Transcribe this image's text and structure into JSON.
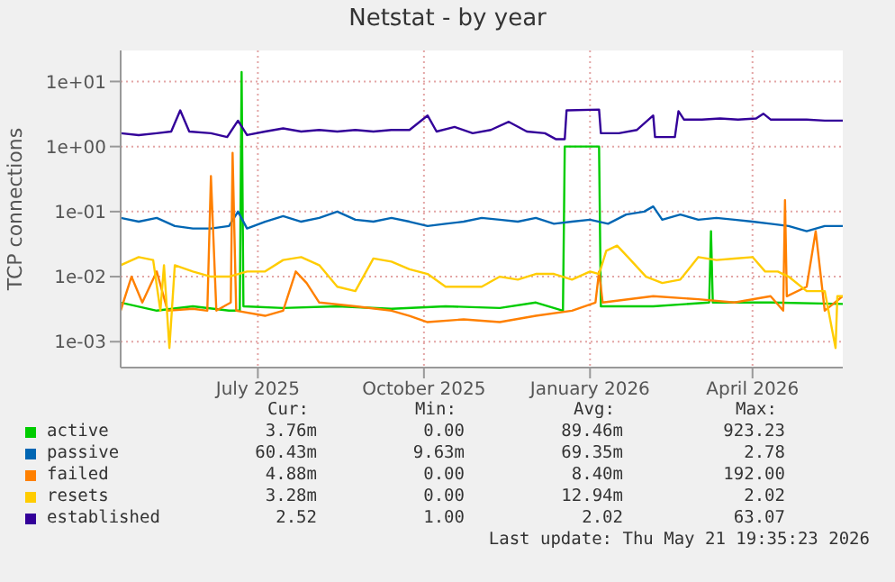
{
  "chart_data": {
    "type": "line",
    "title": "Netstat - by year",
    "ylabel": "TCP connections",
    "log": "y",
    "grid": true,
    "legend": "bottom",
    "marker": "none",
    "line_style": "solid",
    "xlim": [
      "2025-04-16",
      "2026-05-21"
    ],
    "xticks": [
      {
        "value": "2025-07-01",
        "label": "July 2025"
      },
      {
        "value": "2025-10-01",
        "label": "October 2025"
      },
      {
        "value": "2026-01-01",
        "label": "January 2026"
      },
      {
        "value": "2026-04-01",
        "label": "April 2026"
      }
    ],
    "ylim": [
      0.0004,
      30
    ],
    "yticks": [
      {
        "value": 0.001,
        "label": "1e-03"
      },
      {
        "value": 0.01,
        "label": "1e-02"
      },
      {
        "value": 0.1,
        "label": "1e-01"
      },
      {
        "value": 1,
        "label": "1e+00"
      },
      {
        "value": 10,
        "label": "1e+01"
      }
    ],
    "series": [
      {
        "name": "active",
        "color": "#00cc00",
        "x": [
          "2025-04-16",
          "2025-05-06",
          "2025-05-26",
          "2025-06-15",
          "2025-06-21",
          "2025-06-22",
          "2025-06-23",
          "2025-07-15",
          "2025-08-14",
          "2025-09-13",
          "2025-10-13",
          "2025-11-12",
          "2025-12-02",
          "2025-12-17",
          "2025-12-18",
          "2026-01-06",
          "2026-01-07",
          "2026-02-05",
          "2026-03-08",
          "2026-03-09",
          "2026-03-10",
          "2026-04-11",
          "2026-05-21"
        ],
        "values": [
          0.004,
          0.003,
          0.0035,
          0.003,
          0.003,
          14,
          0.0035,
          0.0033,
          0.0035,
          0.0032,
          0.0035,
          0.0033,
          0.004,
          0.003,
          1.0,
          1.0,
          0.0035,
          0.0035,
          0.004,
          0.05,
          0.004,
          0.004,
          0.0038
        ]
      },
      {
        "name": "passive",
        "color": "#0066b3",
        "x": [
          "2025-04-16",
          "2025-04-26",
          "2025-05-06",
          "2025-05-16",
          "2025-05-26",
          "2025-06-05",
          "2025-06-15",
          "2025-06-20",
          "2025-06-25",
          "2025-07-05",
          "2025-07-15",
          "2025-07-25",
          "2025-08-04",
          "2025-08-14",
          "2025-08-24",
          "2025-09-03",
          "2025-09-13",
          "2025-09-23",
          "2025-10-03",
          "2025-10-13",
          "2025-10-23",
          "2025-11-02",
          "2025-11-12",
          "2025-11-22",
          "2025-12-02",
          "2025-12-12",
          "2025-12-22",
          "2026-01-01",
          "2026-01-11",
          "2026-01-21",
          "2026-01-31",
          "2026-02-05",
          "2026-02-10",
          "2026-02-20",
          "2026-03-02",
          "2026-03-12",
          "2026-03-22",
          "2026-04-01",
          "2026-04-11",
          "2026-04-21",
          "2026-05-01",
          "2026-05-11",
          "2026-05-21"
        ],
        "values": [
          0.08,
          0.07,
          0.08,
          0.06,
          0.055,
          0.055,
          0.06,
          0.1,
          0.055,
          0.07,
          0.085,
          0.07,
          0.08,
          0.1,
          0.075,
          0.07,
          0.08,
          0.07,
          0.06,
          0.065,
          0.07,
          0.08,
          0.075,
          0.07,
          0.08,
          0.065,
          0.07,
          0.075,
          0.065,
          0.09,
          0.1,
          0.12,
          0.075,
          0.09,
          0.075,
          0.08,
          0.075,
          0.07,
          0.065,
          0.06,
          0.05,
          0.06,
          0.06
        ]
      },
      {
        "name": "failed",
        "color": "#ff8000",
        "x": [
          "2025-04-16",
          "2025-04-22",
          "2025-04-28",
          "2025-05-06",
          "2025-05-12",
          "2025-05-26",
          "2025-06-03",
          "2025-06-05",
          "2025-06-08",
          "2025-06-16",
          "2025-06-17",
          "2025-06-19",
          "2025-07-05",
          "2025-07-15",
          "2025-07-22",
          "2025-07-28",
          "2025-08-04",
          "2025-08-24",
          "2025-09-13",
          "2025-09-23",
          "2025-10-03",
          "2025-10-23",
          "2025-11-12",
          "2025-12-02",
          "2025-12-22",
          "2026-01-04",
          "2026-01-06",
          "2026-01-08",
          "2026-02-05",
          "2026-03-02",
          "2026-03-22",
          "2026-04-11",
          "2026-04-18",
          "2026-04-19",
          "2026-04-20",
          "2026-05-01",
          "2026-05-06",
          "2026-05-11",
          "2026-05-21"
        ],
        "values": [
          0.003,
          0.01,
          0.004,
          0.012,
          0.003,
          0.0032,
          0.003,
          0.35,
          0.003,
          0.004,
          0.8,
          0.003,
          0.0025,
          0.003,
          0.012,
          0.008,
          0.004,
          0.0035,
          0.003,
          0.0025,
          0.002,
          0.0022,
          0.002,
          0.0025,
          0.003,
          0.004,
          0.012,
          0.004,
          0.005,
          0.0045,
          0.004,
          0.005,
          0.003,
          0.15,
          0.005,
          0.007,
          0.05,
          0.003,
          0.005
        ]
      },
      {
        "name": "resets",
        "color": "#ffcc00",
        "x": [
          "2025-04-16",
          "2025-04-26",
          "2025-05-04",
          "2025-05-08",
          "2025-05-10",
          "2025-05-13",
          "2025-05-16",
          "2025-05-26",
          "2025-06-05",
          "2025-06-15",
          "2025-06-25",
          "2025-07-05",
          "2025-07-15",
          "2025-07-25",
          "2025-08-04",
          "2025-08-14",
          "2025-08-24",
          "2025-09-03",
          "2025-09-13",
          "2025-09-23",
          "2025-10-03",
          "2025-10-13",
          "2025-10-23",
          "2025-11-02",
          "2025-11-12",
          "2025-11-22",
          "2025-12-02",
          "2025-12-12",
          "2025-12-22",
          "2026-01-01",
          "2026-01-06",
          "2026-01-10",
          "2026-01-16",
          "2026-01-22",
          "2026-02-01",
          "2026-02-10",
          "2026-02-20",
          "2026-03-02",
          "2026-03-12",
          "2026-03-22",
          "2026-04-01",
          "2026-04-08",
          "2026-04-15",
          "2026-04-21",
          "2026-05-01",
          "2026-05-11",
          "2026-05-17",
          "2026-05-18",
          "2026-05-21"
        ],
        "values": [
          0.015,
          0.02,
          0.018,
          0.003,
          0.015,
          0.0008,
          0.015,
          0.012,
          0.01,
          0.01,
          0.012,
          0.012,
          0.018,
          0.02,
          0.015,
          0.007,
          0.006,
          0.019,
          0.017,
          0.013,
          0.011,
          0.007,
          0.007,
          0.007,
          0.01,
          0.009,
          0.011,
          0.011,
          0.009,
          0.012,
          0.011,
          0.025,
          0.03,
          0.02,
          0.01,
          0.008,
          0.009,
          0.02,
          0.018,
          0.019,
          0.02,
          0.012,
          0.012,
          0.01,
          0.006,
          0.006,
          0.0008,
          0.005,
          0.005
        ]
      },
      {
        "name": "established",
        "color": "#330099",
        "x": [
          "2025-04-16",
          "2025-04-26",
          "2025-05-06",
          "2025-05-14",
          "2025-05-19",
          "2025-05-24",
          "2025-06-05",
          "2025-06-14",
          "2025-06-20",
          "2025-06-25",
          "2025-07-05",
          "2025-07-15",
          "2025-07-25",
          "2025-08-04",
          "2025-08-14",
          "2025-08-24",
          "2025-09-03",
          "2025-09-13",
          "2025-09-23",
          "2025-10-03",
          "2025-10-08",
          "2025-10-18",
          "2025-10-28",
          "2025-11-07",
          "2025-11-17",
          "2025-11-27",
          "2025-12-07",
          "2025-12-13",
          "2025-12-18",
          "2025-12-19",
          "2026-01-06",
          "2026-01-07",
          "2026-01-17",
          "2026-01-27",
          "2026-02-05",
          "2026-02-06",
          "2026-02-17",
          "2026-02-19",
          "2026-02-22",
          "2026-03-04",
          "2026-03-14",
          "2026-03-24",
          "2026-04-03",
          "2026-04-07",
          "2026-04-11",
          "2026-04-21",
          "2026-05-01",
          "2026-05-11",
          "2026-05-21"
        ],
        "values": [
          1.6,
          1.5,
          1.6,
          1.7,
          3.6,
          1.7,
          1.6,
          1.4,
          2.5,
          1.5,
          1.7,
          1.9,
          1.7,
          1.8,
          1.7,
          1.8,
          1.7,
          1.8,
          1.8,
          3.0,
          1.7,
          2.0,
          1.6,
          1.8,
          2.4,
          1.7,
          1.6,
          1.3,
          1.3,
          3.6,
          3.7,
          1.6,
          1.6,
          1.8,
          3.0,
          1.4,
          1.4,
          3.5,
          2.6,
          2.6,
          2.7,
          2.6,
          2.7,
          3.2,
          2.6,
          2.6,
          2.6,
          2.5,
          2.5
        ]
      }
    ],
    "annotations": [
      "Cur:",
      "Min:",
      "Avg:",
      "Max:",
      "3.76m",
      "0.00",
      "89.46m",
      "923.23",
      "60.43m",
      "9.63m",
      "69.35m",
      "2.78",
      "4.88m",
      "0.00",
      "8.40m",
      "192.00",
      "3.28m",
      "0.00",
      "12.94m",
      "2.02",
      "2.52",
      "1.00",
      "2.02",
      "63.07",
      "Last update: Thu May 21 19:35:23 2026"
    ]
  }
}
